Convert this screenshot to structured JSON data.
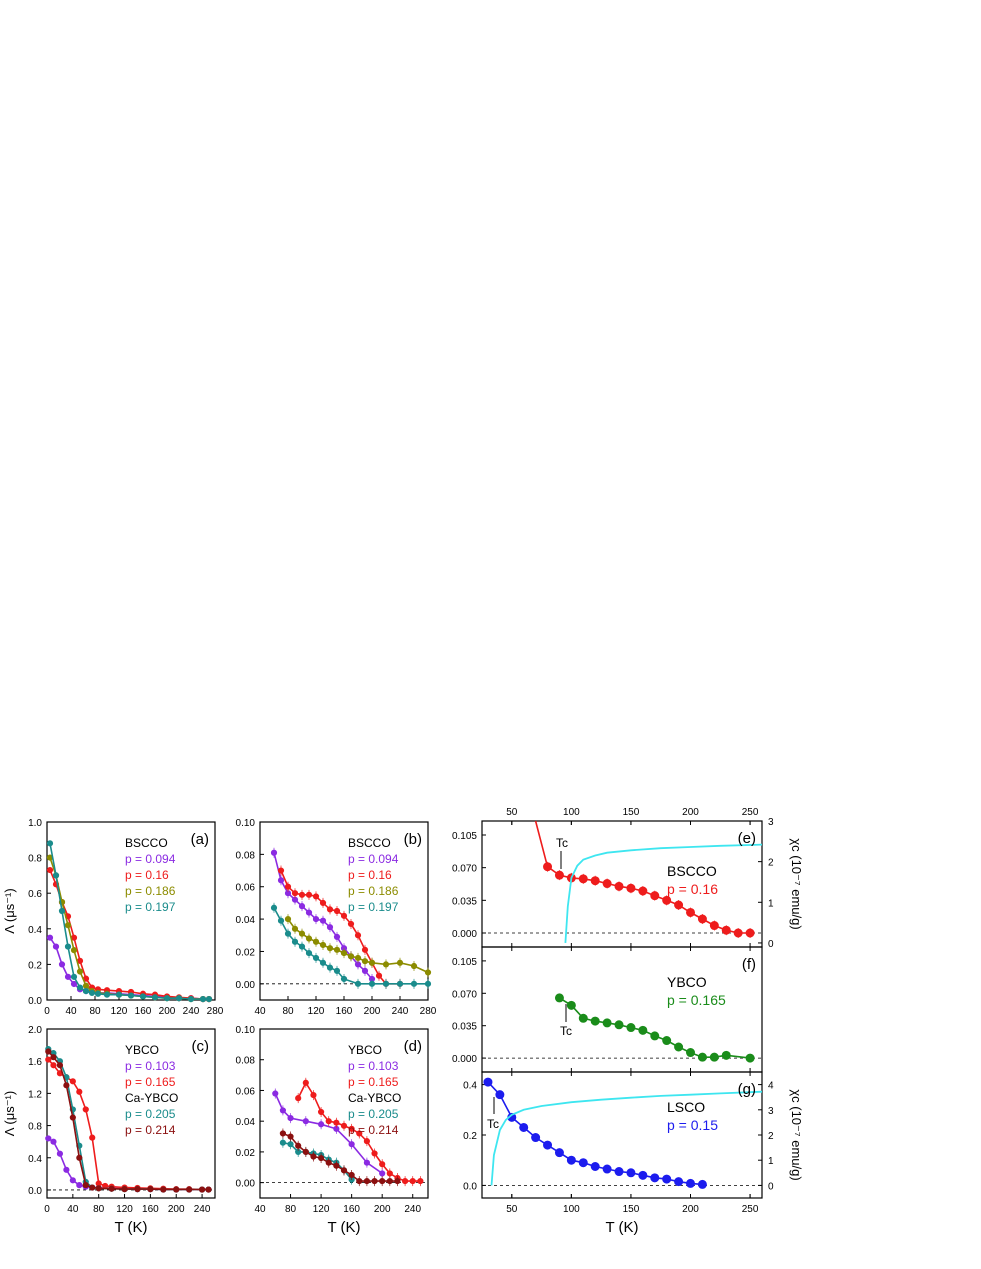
{
  "colors": {
    "p094": "#8b2be2",
    "p16": "#ee1c1c",
    "p186": "#8c8c00",
    "p197": "#1a8c8c",
    "p103": "#8b2be2",
    "p165": "#ee1c1c",
    "p205": "#1a8c8c",
    "p214": "#8b1010",
    "green": "#1a8c1a",
    "blue": "#1c1cee",
    "cyan": "#3ee6f0"
  },
  "axis_text": {
    "lambda_ylabel": "Λ (μs⁻¹)",
    "T_xlabel": "T (K)",
    "chi_label": "χc (10⁻⁷ emu/g)",
    "Tc_label": "Tc"
  },
  "chart_data": [
    {
      "panel": "(a)",
      "type": "line",
      "legend_title": "BSCCO",
      "xlim": [
        0,
        280
      ],
      "ylim": [
        0,
        1.0
      ],
      "xticks": [
        "0",
        "40",
        "80",
        "120",
        "160",
        "200",
        "240",
        "280"
      ],
      "yticks": [
        "0.0",
        "0.2",
        "0.4",
        "0.6",
        "0.8",
        "1.0"
      ],
      "series": [
        {
          "name": "p = 0.094",
          "color": "#8b2be2",
          "x": [
            5,
            15,
            25,
            35,
            45,
            55,
            65,
            75,
            85,
            100,
            120,
            140,
            160,
            180,
            200,
            220,
            240,
            260,
            270
          ],
          "y": [
            0.35,
            0.3,
            0.2,
            0.13,
            0.09,
            0.06,
            0.05,
            0.045,
            0.04,
            0.04,
            0.035,
            0.03,
            0.025,
            0.02,
            0.015,
            0.01,
            0.01,
            0.005,
            0.005
          ]
        },
        {
          "name": "p = 0.16",
          "color": "#ee1c1c",
          "x": [
            5,
            15,
            25,
            35,
            45,
            55,
            65,
            75,
            85,
            100,
            120,
            140,
            160,
            180,
            200,
            220,
            240,
            260,
            270
          ],
          "y": [
            0.73,
            0.65,
            0.55,
            0.47,
            0.35,
            0.22,
            0.12,
            0.07,
            0.06,
            0.055,
            0.05,
            0.045,
            0.035,
            0.03,
            0.02,
            0.015,
            0.01,
            0.005,
            0.005
          ]
        },
        {
          "name": "p = 0.186",
          "color": "#8c8c00",
          "x": [
            5,
            15,
            25,
            35,
            45,
            55,
            65,
            75,
            85,
            100,
            120,
            140,
            160,
            180,
            200,
            220,
            240,
            260,
            270
          ],
          "y": [
            0.8,
            0.7,
            0.55,
            0.42,
            0.28,
            0.16,
            0.08,
            0.05,
            0.04,
            0.035,
            0.03,
            0.025,
            0.02,
            0.015,
            0.01,
            0.01,
            0.005,
            0.005,
            0.005
          ]
        },
        {
          "name": "p = 0.197",
          "color": "#1a8c8c",
          "x": [
            5,
            15,
            25,
            35,
            45,
            55,
            65,
            75,
            85,
            100,
            120,
            140,
            160,
            180,
            200,
            220,
            240,
            260,
            270
          ],
          "y": [
            0.88,
            0.7,
            0.5,
            0.3,
            0.13,
            0.07,
            0.05,
            0.04,
            0.035,
            0.03,
            0.03,
            0.025,
            0.02,
            0.015,
            0.01,
            0.01,
            0.005,
            0.005,
            0.005
          ]
        }
      ]
    },
    {
      "panel": "(b)",
      "type": "line",
      "legend_title": "BSCCO",
      "xlim": [
        40,
        280
      ],
      "ylim": [
        -0.01,
        0.1
      ],
      "xticks": [
        "40",
        "80",
        "120",
        "160",
        "200",
        "240",
        "280"
      ],
      "yticks": [
        "0.00",
        "0.02",
        "0.04",
        "0.06",
        "0.08",
        "0.10"
      ],
      "series": [
        {
          "name": "p = 0.094",
          "color": "#8b2be2",
          "x": [
            60,
            70,
            80,
            90,
            100,
            110,
            120,
            130,
            140,
            150,
            160,
            170,
            180,
            190,
            200
          ],
          "y": [
            0.081,
            0.064,
            0.056,
            0.052,
            0.048,
            0.044,
            0.04,
            0.039,
            0.035,
            0.029,
            0.022,
            0.017,
            0.012,
            0.008,
            0.003
          ]
        },
        {
          "name": "p = 0.16",
          "color": "#ee1c1c",
          "x": [
            70,
            80,
            90,
            100,
            110,
            120,
            130,
            140,
            150,
            160,
            170,
            180,
            190,
            200,
            210,
            220,
            240
          ],
          "y": [
            0.07,
            0.06,
            0.056,
            0.055,
            0.055,
            0.054,
            0.05,
            0.046,
            0.045,
            0.042,
            0.037,
            0.03,
            0.021,
            0.013,
            0.005,
            0.0,
            0.0
          ]
        },
        {
          "name": "p = 0.186",
          "color": "#8c8c00",
          "x": [
            80,
            90,
            100,
            110,
            120,
            130,
            140,
            150,
            160,
            170,
            180,
            190,
            200,
            220,
            240,
            260,
            280
          ],
          "y": [
            0.04,
            0.034,
            0.031,
            0.028,
            0.026,
            0.024,
            0.022,
            0.021,
            0.019,
            0.017,
            0.016,
            0.014,
            0.013,
            0.012,
            0.013,
            0.011,
            0.007
          ]
        },
        {
          "name": "p = 0.197",
          "color": "#1a8c8c",
          "x": [
            60,
            70,
            80,
            90,
            100,
            110,
            120,
            130,
            140,
            150,
            160,
            180,
            200,
            220,
            240,
            260,
            280
          ],
          "y": [
            0.047,
            0.039,
            0.031,
            0.026,
            0.023,
            0.019,
            0.016,
            0.013,
            0.01,
            0.008,
            0.003,
            0.0,
            0.0,
            0.0,
            0.0,
            0.0,
            0.0
          ]
        }
      ]
    },
    {
      "panel": "(c)",
      "type": "line",
      "legend_title": "YBCO",
      "legend_subtitle": "Ca-YBCO",
      "xlim": [
        0,
        260
      ],
      "ylim": [
        -0.1,
        2.0
      ],
      "xticks": [
        "0",
        "40",
        "80",
        "120",
        "160",
        "200",
        "240"
      ],
      "yticks": [
        "0.0",
        "0.4",
        "0.8",
        "1.2",
        "1.6",
        "2.0"
      ],
      "series": [
        {
          "name": "p = 0.103",
          "color": "#8b2be2",
          "x": [
            2,
            10,
            20,
            30,
            40,
            50,
            60,
            70,
            80,
            100,
            120,
            140,
            160,
            180,
            200,
            220,
            240,
            250
          ],
          "y": [
            0.64,
            0.6,
            0.45,
            0.25,
            0.12,
            0.06,
            0.04,
            0.03,
            0.025,
            0.02,
            0.015,
            0.01,
            0.01,
            0.005,
            0.005,
            0.005,
            0.005,
            0.005
          ]
        },
        {
          "name": "p = 0.165",
          "color": "#ee1c1c",
          "x": [
            2,
            10,
            20,
            30,
            40,
            50,
            60,
            70,
            80,
            90,
            100,
            120,
            140,
            160,
            180,
            200,
            220,
            240,
            250
          ],
          "y": [
            1.62,
            1.55,
            1.45,
            1.4,
            1.35,
            1.22,
            1.0,
            0.65,
            0.08,
            0.05,
            0.04,
            0.03,
            0.025,
            0.02,
            0.015,
            0.01,
            0.01,
            0.005,
            0.005
          ]
        },
        {
          "name": "p = 0.205",
          "color": "#1a8c8c",
          "x": [
            2,
            10,
            20,
            30,
            40,
            50,
            60,
            70,
            80,
            100,
            120,
            140,
            160,
            180,
            200,
            220,
            240,
            250
          ],
          "y": [
            1.75,
            1.7,
            1.6,
            1.4,
            1.0,
            0.55,
            0.1,
            0.03,
            0.02,
            0.015,
            0.01,
            0.01,
            0.01,
            0.005,
            0.005,
            0.005,
            0.005,
            0.005
          ]
        },
        {
          "name": "p = 0.214",
          "color": "#8b1010",
          "x": [
            2,
            10,
            20,
            30,
            40,
            50,
            60,
            70,
            80,
            100,
            120,
            140,
            160,
            180,
            200,
            220,
            240,
            250
          ],
          "y": [
            1.72,
            1.65,
            1.55,
            1.3,
            0.9,
            0.4,
            0.06,
            0.03,
            0.02,
            0.015,
            0.01,
            0.01,
            0.01,
            0.005,
            0.005,
            0.005,
            0.005,
            0.005
          ]
        }
      ]
    },
    {
      "panel": "(d)",
      "type": "line",
      "legend_title": "YBCO",
      "legend_subtitle": "Ca-YBCO",
      "xlim": [
        40,
        260
      ],
      "ylim": [
        -0.01,
        0.1
      ],
      "xticks": [
        "40",
        "80",
        "120",
        "160",
        "200",
        "240"
      ],
      "yticks": [
        "0.00",
        "0.02",
        "0.04",
        "0.06",
        "0.08",
        "0.10"
      ],
      "series": [
        {
          "name": "p = 0.103",
          "color": "#8b2be2",
          "x": [
            60,
            70,
            80,
            100,
            120,
            140,
            160,
            180,
            200
          ],
          "y": [
            0.058,
            0.047,
            0.042,
            0.04,
            0.038,
            0.035,
            0.025,
            0.013,
            0.006
          ]
        },
        {
          "name": "p = 0.165",
          "color": "#ee1c1c",
          "x": [
            90,
            100,
            110,
            120,
            130,
            140,
            150,
            160,
            170,
            180,
            190,
            200,
            210,
            220,
            230,
            240,
            250
          ],
          "y": [
            0.055,
            0.065,
            0.057,
            0.046,
            0.04,
            0.039,
            0.037,
            0.035,
            0.032,
            0.027,
            0.019,
            0.012,
            0.006,
            0.003,
            0.001,
            0.001,
            0.001
          ]
        },
        {
          "name": "p = 0.205",
          "color": "#1a8c8c",
          "x": [
            70,
            80,
            90,
            100,
            110,
            120,
            130,
            140,
            150,
            160
          ],
          "y": [
            0.026,
            0.025,
            0.02,
            0.02,
            0.019,
            0.018,
            0.015,
            0.013,
            0.008,
            0.002
          ]
        },
        {
          "name": "p = 0.214",
          "color": "#8b1010",
          "x": [
            70,
            80,
            90,
            100,
            110,
            120,
            130,
            140,
            150,
            160,
            170,
            180,
            190,
            200,
            210,
            220
          ],
          "y": [
            0.032,
            0.03,
            0.024,
            0.02,
            0.017,
            0.016,
            0.013,
            0.011,
            0.008,
            0.005,
            0.001,
            0.001,
            0.001,
            0.001,
            0.001,
            0.001
          ]
        }
      ]
    },
    {
      "panel": "(e)",
      "type": "scatter",
      "sample": "BSCCO",
      "label": "p = 0.16",
      "xlim": [
        25,
        260
      ],
      "ylim": [
        -0.015,
        0.12
      ],
      "top_xticks": [
        "50",
        "100",
        "150",
        "200",
        "250"
      ],
      "yticks": [
        "0.000",
        "0.035",
        "0.070",
        "0.105"
      ],
      "right_yticks": [
        "0",
        "1",
        "2",
        "3"
      ],
      "right_ylim": [
        -0.1,
        3.0
      ],
      "series": [
        {
          "name": "p = 0.16",
          "color": "#ee1c1c",
          "x": [
            70,
            80,
            90,
            100,
            110,
            120,
            130,
            140,
            150,
            160,
            170,
            180,
            190,
            200,
            210,
            220,
            230,
            240,
            250
          ],
          "y": [
            0.122,
            0.071,
            0.062,
            0.059,
            0.058,
            0.056,
            0.053,
            0.05,
            0.048,
            0.045,
            0.04,
            0.035,
            0.03,
            0.022,
            0.015,
            0.008,
            0.003,
            0.0,
            0.0
          ]
        },
        {
          "name": "χc",
          "color": "#3ee6f0",
          "x": [
            95,
            97,
            100,
            105,
            110,
            120,
            130,
            150,
            175,
            200,
            225,
            250,
            260
          ],
          "y": [
            0.0,
            0.9,
            1.6,
            1.9,
            2.05,
            2.15,
            2.22,
            2.28,
            2.33,
            2.36,
            2.39,
            2.41,
            2.42
          ]
        }
      ]
    },
    {
      "panel": "(f)",
      "type": "scatter",
      "sample": "YBCO",
      "label": "p = 0.165",
      "xlim": [
        25,
        260
      ],
      "ylim": [
        -0.015,
        0.12
      ],
      "yticks": [
        "0.000",
        "0.035",
        "0.070",
        "0.105"
      ],
      "series": [
        {
          "name": "p = 0.165",
          "color": "#1a8c1a",
          "x": [
            90,
            100,
            110,
            120,
            130,
            140,
            150,
            160,
            170,
            180,
            190,
            200,
            210,
            220,
            230,
            250
          ],
          "y": [
            0.065,
            0.057,
            0.043,
            0.04,
            0.038,
            0.036,
            0.033,
            0.03,
            0.024,
            0.019,
            0.012,
            0.006,
            0.001,
            0.001,
            0.003,
            0.0
          ]
        }
      ]
    },
    {
      "panel": "(g)",
      "type": "scatter",
      "sample": "LSCO",
      "label": "p = 0.15",
      "xlim": [
        25,
        260
      ],
      "ylim": [
        -0.05,
        0.45
      ],
      "xticks": [
        "50",
        "100",
        "150",
        "200",
        "250"
      ],
      "yticks": [
        "0.0",
        "0.2",
        "0.4"
      ],
      "right_yticks": [
        "0",
        "1",
        "2",
        "3",
        "4"
      ],
      "right_ylim": [
        -0.5,
        4.5
      ],
      "series": [
        {
          "name": "p = 0.15",
          "color": "#1c1cee",
          "x": [
            30,
            40,
            50,
            60,
            70,
            80,
            90,
            100,
            110,
            120,
            130,
            140,
            150,
            160,
            170,
            180,
            190,
            200,
            210
          ],
          "y": [
            0.41,
            0.36,
            0.27,
            0.23,
            0.19,
            0.16,
            0.13,
            0.1,
            0.09,
            0.075,
            0.065,
            0.055,
            0.05,
            0.04,
            0.03,
            0.025,
            0.015,
            0.008,
            0.004
          ]
        },
        {
          "name": "χc",
          "color": "#3ee6f0",
          "x": [
            33,
            35,
            40,
            45,
            50,
            60,
            75,
            100,
            125,
            150,
            175,
            200,
            225,
            250,
            260
          ],
          "y": [
            0.0,
            1.2,
            2.2,
            2.6,
            2.8,
            3.0,
            3.15,
            3.3,
            3.4,
            3.48,
            3.55,
            3.6,
            3.65,
            3.7,
            3.72
          ]
        }
      ]
    }
  ]
}
